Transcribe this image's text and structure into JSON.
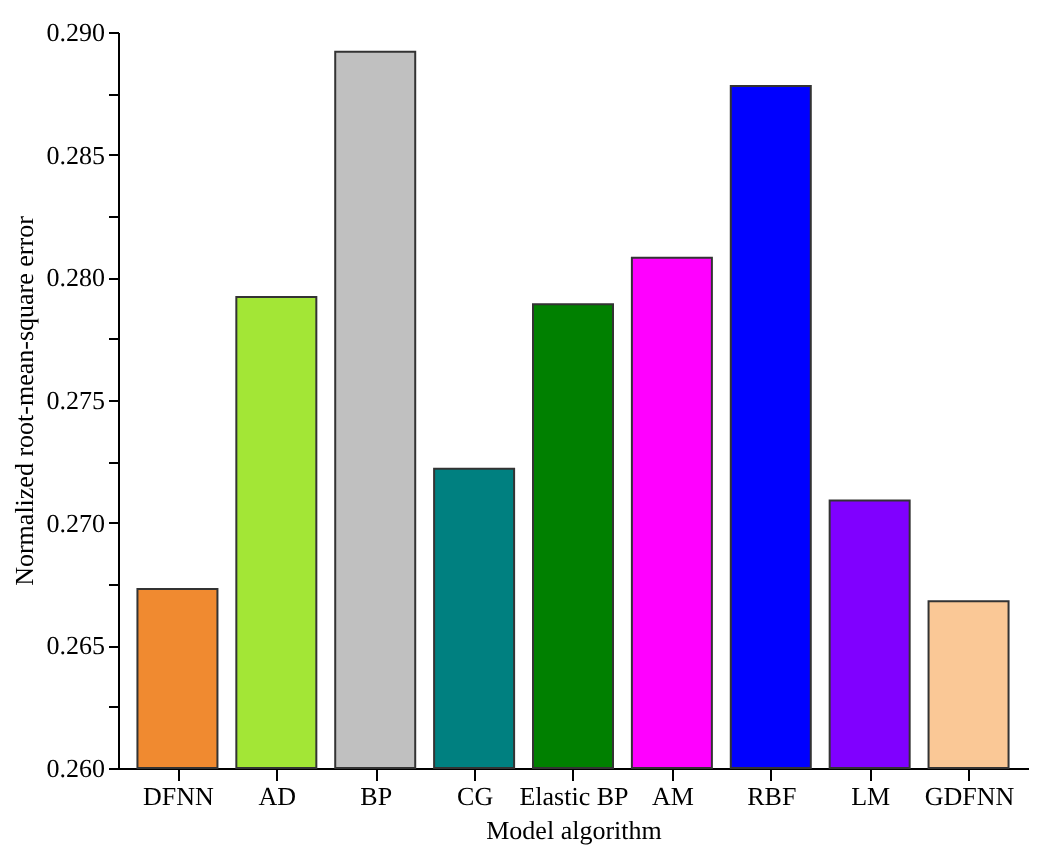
{
  "chart_data": {
    "type": "bar",
    "xlabel": "Model algorithm",
    "ylabel": "Normalized root-mean-square error",
    "categories": [
      "DFNN",
      "AD",
      "BP",
      "CG",
      "Elastic BP",
      "AM",
      "RBF",
      "LM",
      "GDFNN"
    ],
    "values": [
      0.2673,
      0.2792,
      0.2892,
      0.2722,
      0.2789,
      0.2808,
      0.2878,
      0.2709,
      0.2668
    ],
    "colors": [
      "#f08a30",
      "#a3e636",
      "#c0c0c0",
      "#008080",
      "#008000",
      "#ff00ff",
      "#0000ff",
      "#8000ff",
      "#fac896"
    ],
    "ylim": [
      0.26,
      0.29
    ],
    "yticks": [
      {
        "value": 0.26,
        "label": "0.260"
      },
      {
        "value": 0.2625,
        "label": null
      },
      {
        "value": 0.265,
        "label": "0.265"
      },
      {
        "value": 0.2675,
        "label": null
      },
      {
        "value": 0.27,
        "label": "0.270"
      },
      {
        "value": 0.2725,
        "label": null
      },
      {
        "value": 0.275,
        "label": "0.275"
      },
      {
        "value": 0.2775,
        "label": null
      },
      {
        "value": 0.28,
        "label": "0.280"
      },
      {
        "value": 0.2825,
        "label": null
      },
      {
        "value": 0.285,
        "label": "0.285"
      },
      {
        "value": 0.2875,
        "label": null
      },
      {
        "value": 0.29,
        "label": "0.290"
      }
    ],
    "grid": false,
    "legend": false
  }
}
